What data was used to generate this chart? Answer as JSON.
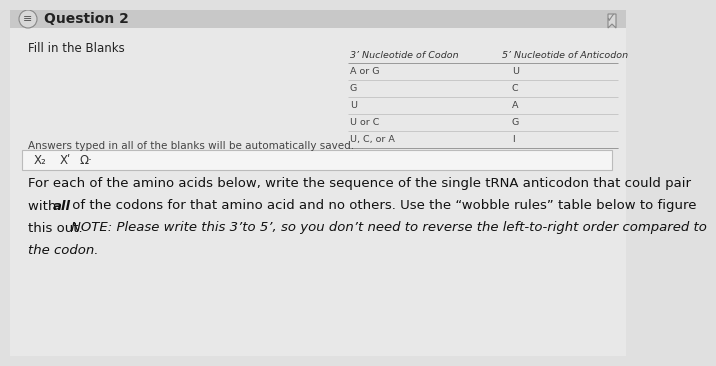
{
  "bg_color": "#e0e0e0",
  "top_bar_color": "#d0d0d0",
  "white_panel_color": "#f0f0f0",
  "title": "Question 2",
  "question_type": "Fill in the Blanks",
  "auto_save_text": "Answers typed in all of the blanks will be automatically saved.",
  "toolbar_symbols": [
    "X₂",
    "Xʹ",
    "Ω·"
  ],
  "table_header_col1": "3’ Nucleotide of Codon",
  "table_header_col2": "5’ Nucleotide of Anticodon",
  "table_rows": [
    [
      "A or G",
      "U"
    ],
    [
      "G",
      "C"
    ],
    [
      "U",
      "A"
    ],
    [
      "U or C",
      "G"
    ],
    [
      "U, C, or A",
      "I"
    ]
  ],
  "para_lines": [
    [
      "For each of the amino acids below, write the sequence of the single tRNA anticodon that could pair",
      false
    ],
    [
      "with ",
      true,
      "all",
      " of the codons for that amino acid and no others. Use the “wobble rules” table below to figure",
      false
    ],
    [
      "this out. ",
      false,
      "NOTE: Please write this 3’to 5’, so you don’t need to reverse the left-to-right order compared to",
      true
    ],
    [
      "the codon.",
      true
    ]
  ],
  "header_font_size": 10,
  "sub_font_size": 8.5,
  "table_font_size": 6.8,
  "para_font_size": 9.5,
  "toolbar_font_size": 8.5
}
